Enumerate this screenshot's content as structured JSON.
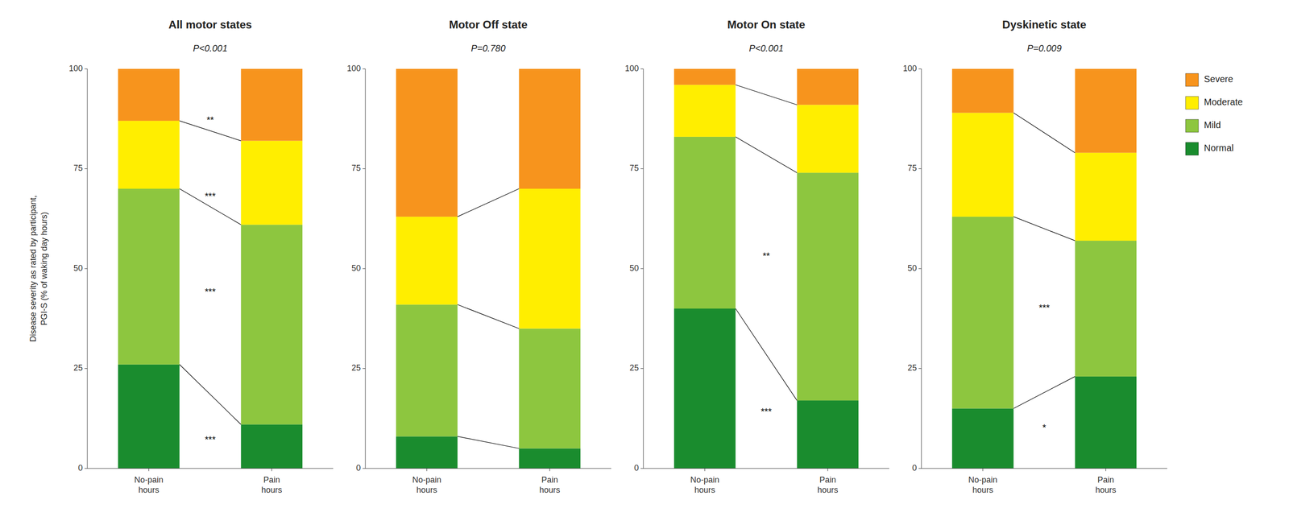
{
  "chart_data": [
    {
      "type": "bar",
      "stacked": true,
      "grid": false,
      "title": "All motor states",
      "subtitle": "P<0.001",
      "y_label": "Disease severity as rated by participant,\nPGI-S (% of waking day hours)",
      "categories": [
        "No-pain\nhours",
        "Pain\nhours"
      ],
      "series": [
        {
          "name": "Normal",
          "color": "#1a8c2e",
          "values": [
            26,
            11
          ]
        },
        {
          "name": "Mild",
          "color": "#8dc63f",
          "values": [
            44,
            50
          ]
        },
        {
          "name": "Moderate",
          "color": "#ffee00",
          "values": [
            17,
            21
          ]
        },
        {
          "name": "Severe",
          "color": "#f7941d",
          "values": [
            13,
            18
          ]
        }
      ],
      "annotations": [
        {
          "text": "**",
          "y": 87
        },
        {
          "text": "***",
          "y": 68
        },
        {
          "text": "***",
          "y": 44
        },
        {
          "text": "***",
          "y": 7
        }
      ],
      "ylim": [
        0,
        100
      ],
      "yticks": [
        0,
        25,
        50,
        75,
        100
      ]
    },
    {
      "type": "bar",
      "stacked": true,
      "grid": false,
      "title": "Motor Off state",
      "subtitle": "P=0.780",
      "categories": [
        "No-pain\nhours",
        "Pain\nhours"
      ],
      "series": [
        {
          "name": "Normal",
          "color": "#1a8c2e",
          "values": [
            8,
            5
          ]
        },
        {
          "name": "Mild",
          "color": "#8dc63f",
          "values": [
            33,
            30
          ]
        },
        {
          "name": "Moderate",
          "color": "#ffee00",
          "values": [
            22,
            35
          ]
        },
        {
          "name": "Severe",
          "color": "#f7941d",
          "values": [
            37,
            30
          ]
        }
      ],
      "annotations": [],
      "ylim": [
        0,
        100
      ],
      "yticks": [
        0,
        25,
        50,
        75,
        100
      ]
    },
    {
      "type": "bar",
      "stacked": true,
      "grid": false,
      "title": "Motor On state",
      "subtitle": "P<0.001",
      "categories": [
        "No-pain\nhours",
        "Pain\nhours"
      ],
      "series": [
        {
          "name": "Normal",
          "color": "#1a8c2e",
          "values": [
            40,
            17
          ]
        },
        {
          "name": "Mild",
          "color": "#8dc63f",
          "values": [
            43,
            57
          ]
        },
        {
          "name": "Moderate",
          "color": "#ffee00",
          "values": [
            13,
            17
          ]
        },
        {
          "name": "Severe",
          "color": "#f7941d",
          "values": [
            4,
            9
          ]
        }
      ],
      "annotations": [
        {
          "text": "**",
          "y": 53
        },
        {
          "text": "***",
          "y": 14
        }
      ],
      "ylim": [
        0,
        100
      ],
      "yticks": [
        0,
        25,
        50,
        75,
        100
      ]
    },
    {
      "type": "bar",
      "stacked": true,
      "grid": false,
      "legend": "right",
      "title": "Dyskinetic state",
      "subtitle": "P=0.009",
      "categories": [
        "No-pain\nhours",
        "Pain\nhours"
      ],
      "series": [
        {
          "name": "Normal",
          "color": "#1a8c2e",
          "values": [
            15,
            23
          ]
        },
        {
          "name": "Mild",
          "color": "#8dc63f",
          "values": [
            48,
            34
          ]
        },
        {
          "name": "Moderate",
          "color": "#ffee00",
          "values": [
            26,
            22
          ]
        },
        {
          "name": "Severe",
          "color": "#f7941d",
          "values": [
            11,
            21
          ]
        }
      ],
      "annotations": [
        {
          "text": "***",
          "y": 40
        },
        {
          "text": "*",
          "y": 10
        }
      ],
      "ylim": [
        0,
        100
      ],
      "yticks": [
        0,
        25,
        50,
        75,
        100
      ]
    }
  ]
}
